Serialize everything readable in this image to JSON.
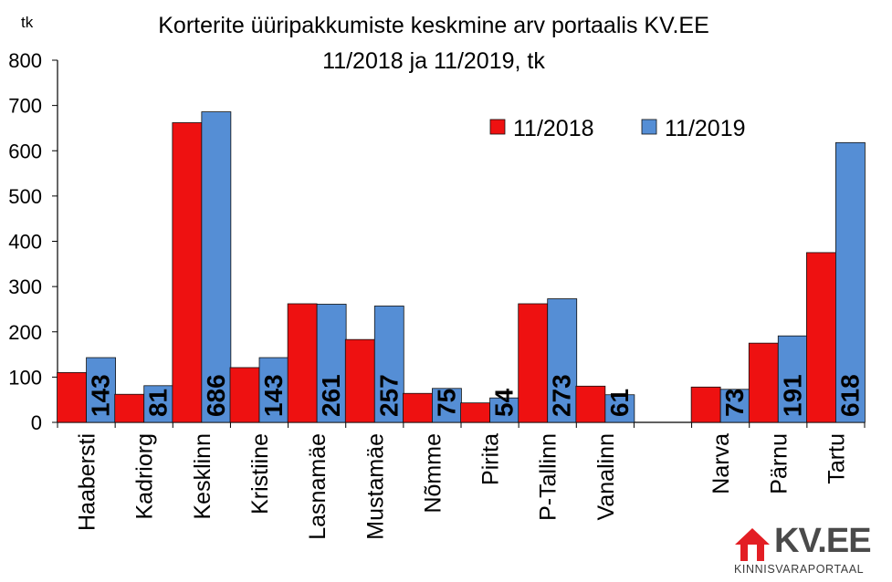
{
  "chart_data": {
    "type": "bar",
    "title": "Korterite üüripakkumiste keskmine arv portaalis KV.EE",
    "subtitle": "11/2018 ja 11/2019, tk",
    "ylabel": "tk",
    "xlabel": "",
    "ylim": [
      0,
      800
    ],
    "yticks": [
      0,
      100,
      200,
      300,
      400,
      500,
      600,
      700,
      800
    ],
    "grid": false,
    "legend_position": "top-right",
    "categories": [
      "Haabersti",
      "Kadriorg",
      "Kesklinn",
      "Kristiine",
      "Lasnamäe",
      "Mustamäe",
      "Nõmme",
      "Pirita",
      "P-Tallinn",
      "Vanalinn",
      "",
      "Narva",
      "Pärnu",
      "Tartu"
    ],
    "series": [
      {
        "name": "11/2018",
        "color": "#ee1111",
        "values": [
          110,
          62,
          662,
          121,
          262,
          183,
          64,
          43,
          262,
          80,
          null,
          78,
          175,
          375
        ]
      },
      {
        "name": "11/2019",
        "color": "#558ed5",
        "values": [
          143,
          81,
          686,
          143,
          261,
          257,
          75,
          54,
          273,
          61,
          null,
          73,
          191,
          618
        ],
        "data_labels": [
          "143",
          "81",
          "686",
          "143",
          "261",
          "257",
          "75",
          "54",
          "273",
          "61",
          "",
          "73",
          "191",
          "618"
        ]
      }
    ]
  },
  "logo": {
    "name": "KV.EE",
    "tagline": "KINNISVARAPORTAAL",
    "color": "#e31e24"
  }
}
